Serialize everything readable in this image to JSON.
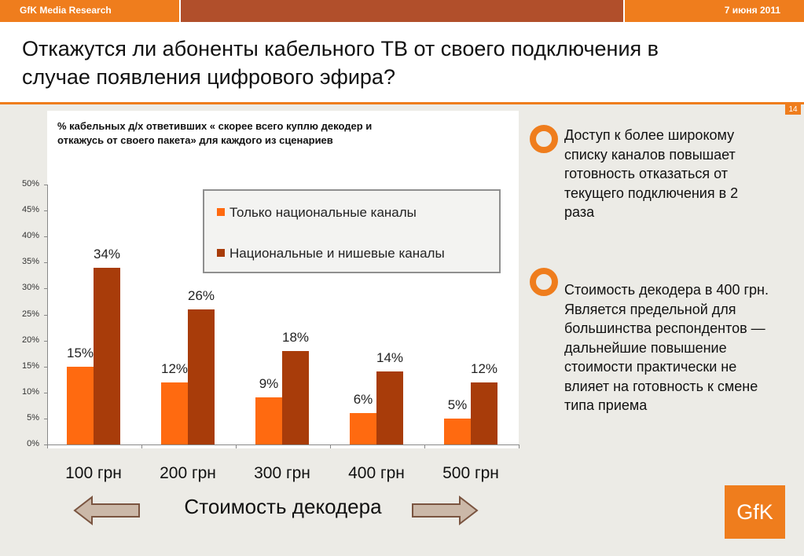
{
  "header": {
    "brand": "GfK Media Research",
    "date": "7 июня 2011"
  },
  "title": "Откажутся ли абоненты кабельного ТВ от своего подключения в случае появления цифрового эфира?",
  "page_number": "14",
  "chart_data": {
    "type": "bar",
    "title": "% кабельных д/х ответивших « скорее всего куплю декодер и откажусь от своего пакета» для каждого из сценариев",
    "categories": [
      "100 грн",
      "200 грн",
      "300 грн",
      "400 грн",
      "500 грн"
    ],
    "series": [
      {
        "name": "Только национальные каналы",
        "values": [
          15,
          12,
          9,
          6,
          5
        ],
        "labels": [
          "15%",
          "12%",
          "9%",
          "6%",
          "5%"
        ],
        "color": "#ff6a10"
      },
      {
        "name": "Национальные и нишевые каналы",
        "values": [
          34,
          26,
          18,
          14,
          12
        ],
        "labels": [
          "34%",
          "26%",
          "18%",
          "14%",
          "12%"
        ],
        "color": "#a83c0a"
      }
    ],
    "yticks": [
      "0%",
      "5%",
      "10%",
      "15%",
      "20%",
      "25%",
      "30%",
      "35%",
      "40%",
      "45%",
      "50%"
    ],
    "ylim": [
      0,
      50
    ],
    "xlabel": "Стоимость декодера",
    "legend_position": "top-right"
  },
  "bullets": [
    {
      "text": "Доступ к более широкому списку каналов повышает готовность отказаться от текущего подключения в 2 раза",
      "icon": "orange-ring-icon"
    },
    {
      "text": "Стоимость декодера в 400 грн. Является предельной для большинства респондентов — дальнейшие повышение стоимости практически не влияет на готовность к смене типа приема",
      "icon": "orange-ring-icon"
    }
  ],
  "logo": "GfK",
  "colors": {
    "accent": "#ef7d1d",
    "header_dark": "#b14f2b",
    "arrow_fill": "#cbb8a8",
    "arrow_stroke": "#7a5440"
  }
}
